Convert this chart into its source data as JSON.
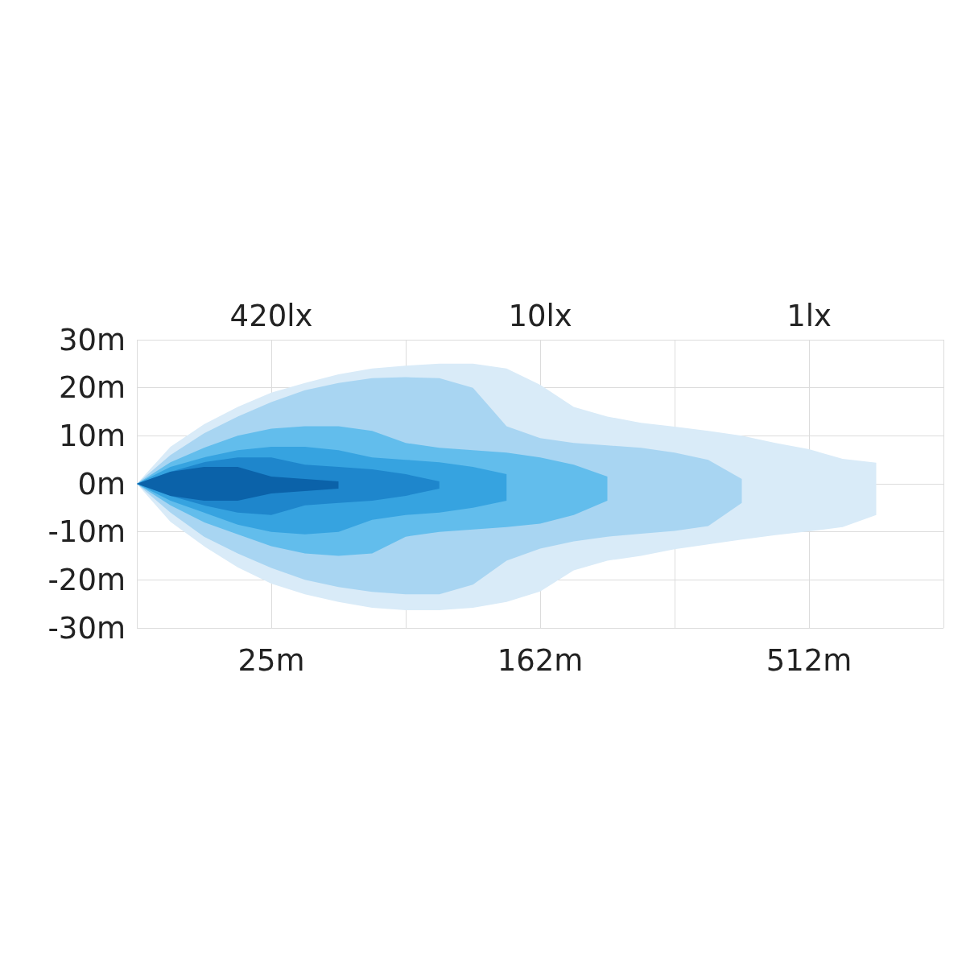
{
  "chart_data": {
    "type": "area",
    "categories": [
      null,
      null,
      null,
      null,
      "25m",
      null,
      null,
      null,
      null,
      null,
      null,
      null,
      "162m",
      null,
      null,
      null,
      null,
      null,
      null,
      null,
      "512m",
      null,
      null,
      null,
      null
    ],
    "series": [
      {
        "color": "#d9ebf8",
        "values": [
          0,
          7.7,
          12.4,
          16,
          19,
          21,
          22.8,
          24,
          24.6,
          25,
          25,
          24,
          20.6,
          16,
          14,
          12.7,
          11.9,
          11,
          10,
          8.5,
          7.2,
          5.2,
          4.4,
          null,
          null
        ]
      },
      {
        "color": "#d9ebf8",
        "values": [
          0,
          -7.9,
          -13,
          -17.4,
          -20.8,
          -23,
          -24.6,
          -25.8,
          -26.3,
          -26.3,
          -25.8,
          -24.6,
          -22.4,
          -18,
          -16,
          -15,
          -13.6,
          -12.6,
          -11.6,
          -10.7,
          -9.9,
          -9,
          -6.5,
          null,
          null
        ]
      },
      {
        "color": "#a8d5f2",
        "values": [
          0,
          6,
          10.5,
          14,
          17,
          19.5,
          21,
          22,
          22.2,
          22,
          20,
          12,
          9.5,
          8.5,
          8,
          7.5,
          6.5,
          5,
          1,
          null,
          null,
          null,
          null,
          null,
          null
        ]
      },
      {
        "color": "#a8d5f2",
        "values": [
          0,
          -6,
          -11,
          -14.5,
          -17.5,
          -20,
          -21.5,
          -22.5,
          -23,
          -23,
          -21,
          -16,
          -13.5,
          -12,
          -11,
          -10.4,
          -9.8,
          -8.8,
          -4,
          null,
          null,
          null,
          null,
          null,
          null
        ]
      },
      {
        "color": "#62bdec",
        "values": [
          0,
          4.5,
          7.5,
          10,
          11.5,
          12,
          12,
          11,
          8.5,
          7.5,
          7,
          6.5,
          5.5,
          4,
          1.5,
          null,
          null,
          null,
          null,
          null,
          null,
          null,
          null,
          null,
          null
        ]
      },
      {
        "color": "#62bdec",
        "values": [
          0,
          -4.5,
          -8,
          -10.5,
          -13,
          -14.5,
          -15,
          -14.5,
          -11,
          -10,
          -9.5,
          -9,
          -8.3,
          -6.5,
          -3.5,
          null,
          null,
          null,
          null,
          null,
          null,
          null,
          null,
          null,
          null
        ]
      },
      {
        "color": "#36a3e0",
        "values": [
          0,
          3.5,
          5.5,
          7,
          7.7,
          7.7,
          7,
          5.5,
          5,
          4.5,
          3.5,
          2,
          null,
          null,
          null,
          null,
          null,
          null,
          null,
          null,
          null,
          null,
          null,
          null,
          null
        ]
      },
      {
        "color": "#36a3e0",
        "values": [
          0,
          -3.5,
          -6,
          -8.5,
          -10,
          -10.5,
          -10,
          -7.5,
          -6.5,
          -6,
          -5,
          -3.5,
          null,
          null,
          null,
          null,
          null,
          null,
          null,
          null,
          null,
          null,
          null,
          null,
          null
        ]
      },
      {
        "color": "#1e86cc",
        "values": [
          0,
          2.5,
          4.5,
          5.5,
          5.5,
          4,
          3.5,
          3,
          2,
          0.5,
          null,
          null,
          null,
          null,
          null,
          null,
          null,
          null,
          null,
          null,
          null,
          null,
          null,
          null,
          null
        ]
      },
      {
        "color": "#1e86cc",
        "values": [
          0,
          -2.5,
          -4.5,
          -6,
          -6.5,
          -4.5,
          -4,
          -3.5,
          -2.5,
          -1,
          null,
          null,
          null,
          null,
          null,
          null,
          null,
          null,
          null,
          null,
          null,
          null,
          null,
          null,
          null
        ]
      },
      {
        "color": "#0b62a9",
        "values": [
          0,
          2.5,
          3.5,
          3.5,
          1.5,
          1,
          0.5,
          null,
          null,
          null,
          null,
          null,
          null,
          null,
          null,
          null,
          null,
          null,
          null,
          null,
          null,
          null,
          null,
          null,
          null
        ]
      },
      {
        "color": "#0b62a9",
        "values": [
          0,
          -2.5,
          -3.5,
          -3.5,
          -2,
          -1.5,
          -1,
          null,
          null,
          null,
          null,
          null,
          null,
          null,
          null,
          null,
          null,
          null,
          null,
          null,
          null,
          null,
          null,
          null,
          null
        ]
      }
    ],
    "ylim": [
      -30,
      30
    ],
    "yticks": [
      {
        "value": -30,
        "label": "-30m"
      },
      {
        "value": -20,
        "label": "-20m"
      },
      {
        "value": -10,
        "label": "-10m"
      },
      {
        "value": 0,
        "label": "0m"
      },
      {
        "value": 10,
        "label": "10m"
      },
      {
        "value": 20,
        "label": "20m"
      },
      {
        "value": 30,
        "label": "30m"
      }
    ],
    "grid": true,
    "annotations": [
      "420lx",
      "10lx",
      "1lx"
    ]
  }
}
